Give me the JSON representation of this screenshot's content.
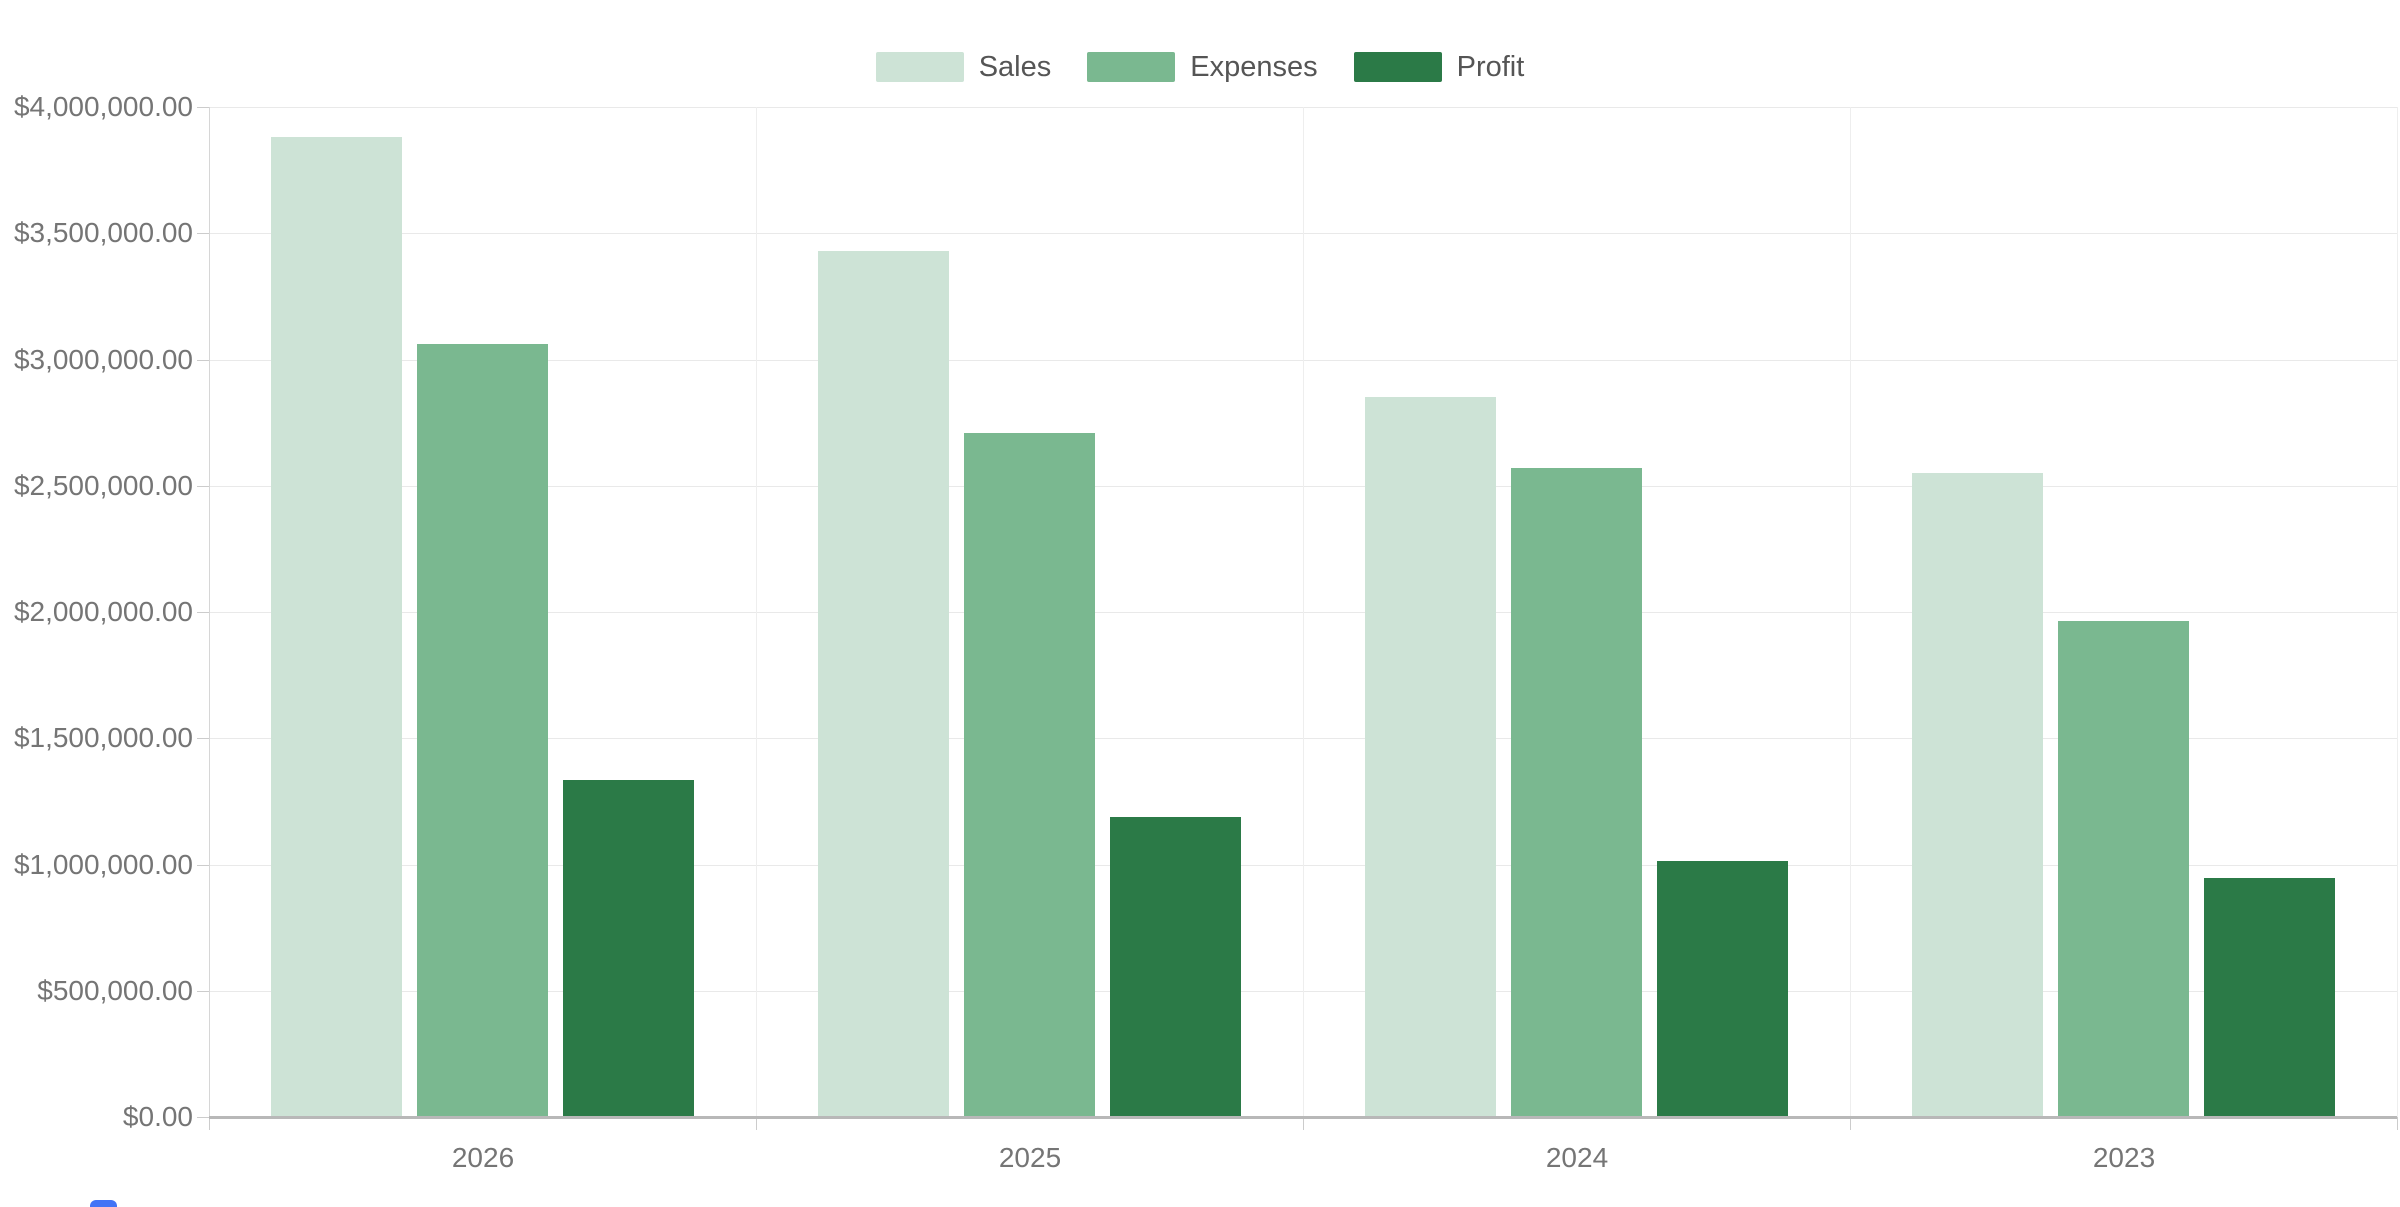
{
  "chart_data": {
    "type": "bar",
    "title": "",
    "xlabel": "",
    "ylabel": "",
    "categories": [
      "2026",
      "2025",
      "2024",
      "2023"
    ],
    "series": [
      {
        "name": "Sales",
        "color": "#cde3d6",
        "values": [
          3880000,
          3430000,
          2850000,
          2550000
        ]
      },
      {
        "name": "Expenses",
        "color": "#7ab890",
        "values": [
          3060000,
          2710000,
          2570000,
          1965000
        ]
      },
      {
        "name": "Profit",
        "color": "#2b7a47",
        "values": [
          1335000,
          1190000,
          1015000,
          945000
        ]
      }
    ],
    "ylim": [
      0,
      4000000
    ],
    "y_tick_step": 500000,
    "y_tick_labels": [
      "$0.00",
      "$500,000.00",
      "$1,000,000.00",
      "$1,500,000.00",
      "$2,000,000.00",
      "$2,500,000.00",
      "$3,000,000.00",
      "$3,500,000.00",
      "$4,000,000.00"
    ],
    "value_format": "currency",
    "grid": true,
    "legend_position": "top-center"
  },
  "theme": {
    "background": "#ffffff",
    "axis_text_color": "#757575",
    "legend_text_color": "#555555",
    "gridline_color": "#e9e9e9",
    "baseline_color": "#b8b8b8"
  }
}
